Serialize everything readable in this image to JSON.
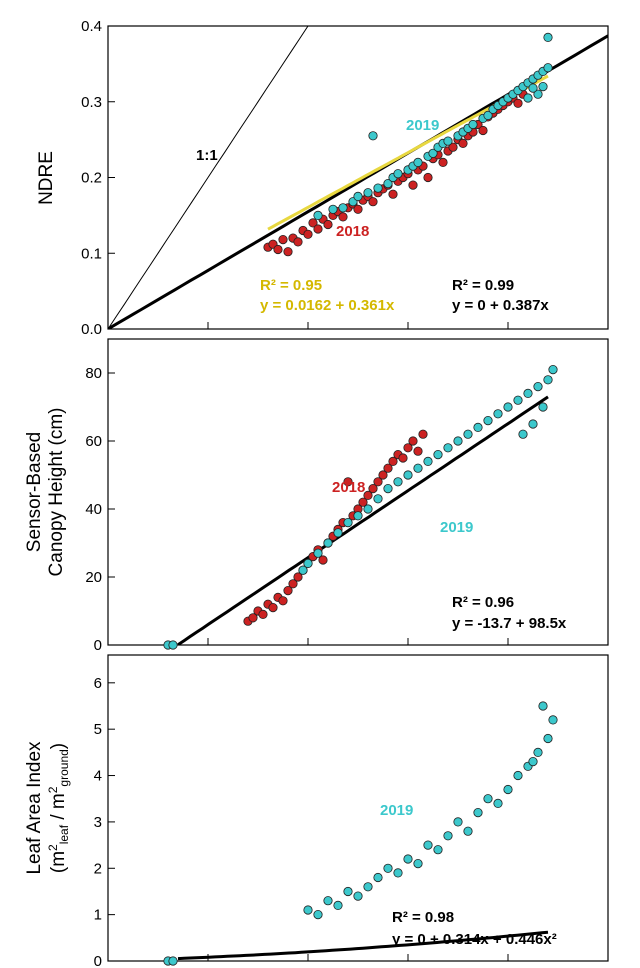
{
  "chart_data": [
    {
      "type": "scatter",
      "panel": "top",
      "ylabel": "NDRE",
      "xlim": [
        0,
        1.0
      ],
      "ylim": [
        0,
        0.4
      ],
      "yticks": [
        "0.0",
        "0.1",
        "0.2",
        "0.3",
        "0.4"
      ],
      "grid": false,
      "series": [
        {
          "name": "2018",
          "color": "#cc2222",
          "points": [
            [
              0.32,
              0.108
            ],
            [
              0.33,
              0.112
            ],
            [
              0.34,
              0.105
            ],
            [
              0.35,
              0.118
            ],
            [
              0.36,
              0.102
            ],
            [
              0.37,
              0.12
            ],
            [
              0.38,
              0.115
            ],
            [
              0.39,
              0.13
            ],
            [
              0.4,
              0.125
            ],
            [
              0.41,
              0.14
            ],
            [
              0.42,
              0.132
            ],
            [
              0.43,
              0.145
            ],
            [
              0.44,
              0.138
            ],
            [
              0.45,
              0.15
            ],
            [
              0.46,
              0.155
            ],
            [
              0.47,
              0.148
            ],
            [
              0.48,
              0.16
            ],
            [
              0.49,
              0.165
            ],
            [
              0.5,
              0.158
            ],
            [
              0.51,
              0.17
            ],
            [
              0.52,
              0.175
            ],
            [
              0.53,
              0.168
            ],
            [
              0.54,
              0.18
            ],
            [
              0.55,
              0.185
            ],
            [
              0.56,
              0.19
            ],
            [
              0.57,
              0.178
            ],
            [
              0.58,
              0.195
            ],
            [
              0.59,
              0.2
            ],
            [
              0.6,
              0.205
            ],
            [
              0.61,
              0.19
            ],
            [
              0.62,
              0.21
            ],
            [
              0.63,
              0.215
            ],
            [
              0.64,
              0.2
            ],
            [
              0.65,
              0.225
            ],
            [
              0.66,
              0.23
            ],
            [
              0.67,
              0.22
            ],
            [
              0.68,
              0.235
            ],
            [
              0.69,
              0.24
            ],
            [
              0.7,
              0.25
            ],
            [
              0.71,
              0.245
            ],
            [
              0.72,
              0.255
            ],
            [
              0.73,
              0.26
            ],
            [
              0.74,
              0.27
            ],
            [
              0.75,
              0.262
            ],
            [
              0.76,
              0.28
            ],
            [
              0.77,
              0.285
            ],
            [
              0.78,
              0.29
            ],
            [
              0.79,
              0.295
            ],
            [
              0.8,
              0.3
            ],
            [
              0.81,
              0.305
            ],
            [
              0.82,
              0.298
            ],
            [
              0.83,
              0.31
            ]
          ]
        },
        {
          "name": "2019",
          "color": "#3cc8cc",
          "points": [
            [
              0.42,
              0.15
            ],
            [
              0.45,
              0.158
            ],
            [
              0.47,
              0.16
            ],
            [
              0.49,
              0.168
            ],
            [
              0.5,
              0.175
            ],
            [
              0.52,
              0.18
            ],
            [
              0.53,
              0.255
            ],
            [
              0.54,
              0.186
            ],
            [
              0.56,
              0.192
            ],
            [
              0.57,
              0.2
            ],
            [
              0.58,
              0.205
            ],
            [
              0.6,
              0.21
            ],
            [
              0.61,
              0.215
            ],
            [
              0.62,
              0.22
            ],
            [
              0.64,
              0.228
            ],
            [
              0.65,
              0.232
            ],
            [
              0.66,
              0.24
            ],
            [
              0.67,
              0.245
            ],
            [
              0.68,
              0.248
            ],
            [
              0.7,
              0.255
            ],
            [
              0.71,
              0.26
            ],
            [
              0.72,
              0.265
            ],
            [
              0.73,
              0.27
            ],
            [
              0.75,
              0.278
            ],
            [
              0.76,
              0.282
            ],
            [
              0.77,
              0.29
            ],
            [
              0.78,
              0.295
            ],
            [
              0.79,
              0.3
            ],
            [
              0.8,
              0.305
            ],
            [
              0.81,
              0.31
            ],
            [
              0.82,
              0.315
            ],
            [
              0.83,
              0.32
            ],
            [
              0.84,
              0.325
            ],
            [
              0.85,
              0.33
            ],
            [
              0.86,
              0.335
            ],
            [
              0.87,
              0.34
            ],
            [
              0.88,
              0.345
            ],
            [
              0.88,
              0.385
            ],
            [
              0.87,
              0.32
            ],
            [
              0.86,
              0.31
            ],
            [
              0.85,
              0.318
            ],
            [
              0.84,
              0.305
            ]
          ]
        }
      ],
      "lines": [
        {
          "name": "1:1",
          "slope": 1,
          "intercept": 0,
          "color": "#000000",
          "width": 1
        },
        {
          "name": "fit",
          "slope": 0.387,
          "intercept": 0,
          "color": "#000000",
          "width": 3
        },
        {
          "name": "fit-2018",
          "slope": 0.361,
          "intercept": 0.0162,
          "color": "#e8d840",
          "width": 3,
          "x_range": [
            0.32,
            0.88
          ]
        }
      ],
      "annotations": [
        {
          "text": "1:1",
          "color": "#000000"
        },
        {
          "text": "2019",
          "color": "#3cc8cc"
        },
        {
          "text": "2018",
          "color": "#cc2222"
        },
        {
          "text": "R² = 0.95",
          "color": "#d4b800"
        },
        {
          "text": "y = 0.0162 + 0.361x",
          "color": "#d4b800"
        },
        {
          "text": "R² = 0.99",
          "color": "#000000"
        },
        {
          "text": "y = 0 + 0.387x",
          "color": "#000000"
        }
      ]
    },
    {
      "type": "scatter",
      "panel": "middle",
      "ylabel": "Sensor-Based Canopy Height (cm)",
      "xlim": [
        0,
        1.0
      ],
      "ylim": [
        0,
        90
      ],
      "yticks": [
        "0",
        "20",
        "40",
        "60",
        "80"
      ],
      "grid": false,
      "series": [
        {
          "name": "2018",
          "color": "#cc2222",
          "points": [
            [
              0.28,
              7
            ],
            [
              0.29,
              8
            ],
            [
              0.3,
              10
            ],
            [
              0.31,
              9
            ],
            [
              0.32,
              12
            ],
            [
              0.33,
              11
            ],
            [
              0.34,
              14
            ],
            [
              0.35,
              13
            ],
            [
              0.36,
              16
            ],
            [
              0.37,
              18
            ],
            [
              0.38,
              20
            ],
            [
              0.39,
              22
            ],
            [
              0.4,
              24
            ],
            [
              0.41,
              26
            ],
            [
              0.42,
              28
            ],
            [
              0.43,
              25
            ],
            [
              0.44,
              30
            ],
            [
              0.45,
              32
            ],
            [
              0.46,
              34
            ],
            [
              0.47,
              36
            ],
            [
              0.48,
              48
            ],
            [
              0.49,
              38
            ],
            [
              0.5,
              40
            ],
            [
              0.51,
              42
            ],
            [
              0.52,
              44
            ],
            [
              0.53,
              46
            ],
            [
              0.54,
              48
            ],
            [
              0.55,
              50
            ],
            [
              0.56,
              52
            ],
            [
              0.57,
              54
            ],
            [
              0.58,
              56
            ],
            [
              0.59,
              55
            ],
            [
              0.6,
              58
            ],
            [
              0.61,
              60
            ],
            [
              0.62,
              57
            ],
            [
              0.63,
              62
            ]
          ]
        },
        {
          "name": "2019",
          "color": "#3cc8cc",
          "points": [
            [
              0.12,
              0
            ],
            [
              0.13,
              0
            ],
            [
              0.39,
              22
            ],
            [
              0.4,
              24
            ],
            [
              0.42,
              27
            ],
            [
              0.44,
              30
            ],
            [
              0.46,
              33
            ],
            [
              0.48,
              36
            ],
            [
              0.5,
              38
            ],
            [
              0.52,
              40
            ],
            [
              0.54,
              43
            ],
            [
              0.56,
              46
            ],
            [
              0.58,
              48
            ],
            [
              0.6,
              50
            ],
            [
              0.62,
              52
            ],
            [
              0.64,
              54
            ],
            [
              0.66,
              56
            ],
            [
              0.68,
              58
            ],
            [
              0.7,
              60
            ],
            [
              0.72,
              62
            ],
            [
              0.74,
              64
            ],
            [
              0.76,
              66
            ],
            [
              0.78,
              68
            ],
            [
              0.8,
              70
            ],
            [
              0.82,
              72
            ],
            [
              0.84,
              74
            ],
            [
              0.86,
              76
            ],
            [
              0.88,
              78
            ],
            [
              0.89,
              81
            ],
            [
              0.87,
              70
            ],
            [
              0.85,
              65
            ],
            [
              0.83,
              62
            ]
          ]
        }
      ],
      "lines": [
        {
          "name": "fit",
          "slope": 98.5,
          "intercept": -13.7,
          "color": "#000000",
          "width": 3,
          "x_range": [
            0.14,
            0.88
          ]
        }
      ],
      "annotations": [
        {
          "text": "2018",
          "color": "#cc2222"
        },
        {
          "text": "2019",
          "color": "#3cc8cc"
        },
        {
          "text": "R² = 0.96",
          "color": "#000000"
        },
        {
          "text": "y = -13.7 + 98.5x",
          "color": "#000000"
        }
      ]
    },
    {
      "type": "scatter",
      "panel": "bottom",
      "ylabel": "Leaf Area Index (m²leaf / m²ground)",
      "xlim": [
        0,
        1.0
      ],
      "ylim": [
        0,
        6.6
      ],
      "yticks": [
        "0",
        "1",
        "2",
        "3",
        "4",
        "5",
        "6"
      ],
      "grid": false,
      "series": [
        {
          "name": "2019",
          "color": "#3cc8cc",
          "points": [
            [
              0.12,
              0
            ],
            [
              0.13,
              0
            ],
            [
              0.4,
              1.1
            ],
            [
              0.42,
              1.0
            ],
            [
              0.44,
              1.3
            ],
            [
              0.46,
              1.2
            ],
            [
              0.48,
              1.5
            ],
            [
              0.5,
              1.4
            ],
            [
              0.52,
              1.6
            ],
            [
              0.54,
              1.8
            ],
            [
              0.56,
              2.0
            ],
            [
              0.58,
              1.9
            ],
            [
              0.6,
              2.2
            ],
            [
              0.62,
              2.1
            ],
            [
              0.64,
              2.5
            ],
            [
              0.66,
              2.4
            ],
            [
              0.68,
              2.7
            ],
            [
              0.7,
              3.0
            ],
            [
              0.72,
              2.8
            ],
            [
              0.74,
              3.2
            ],
            [
              0.76,
              3.5
            ],
            [
              0.78,
              3.4
            ],
            [
              0.8,
              3.7
            ],
            [
              0.82,
              4.0
            ],
            [
              0.84,
              4.2
            ],
            [
              0.86,
              4.5
            ],
            [
              0.88,
              4.8
            ],
            [
              0.89,
              5.2
            ],
            [
              0.87,
              5.5
            ],
            [
              0.85,
              4.3
            ]
          ]
        }
      ],
      "lines": [
        {
          "name": "fit",
          "coefficients": [
            0,
            0.314,
            0.446
          ],
          "color": "#000000",
          "width": 3,
          "x_range": [
            0.14,
            0.88
          ]
        }
      ],
      "annotations": [
        {
          "text": "2019",
          "color": "#3cc8cc"
        },
        {
          "text": "R² = 0.98",
          "color": "#000000"
        },
        {
          "text": "y = 0 + 0.314x + 0.446x²",
          "color": "#000000"
        }
      ]
    }
  ]
}
